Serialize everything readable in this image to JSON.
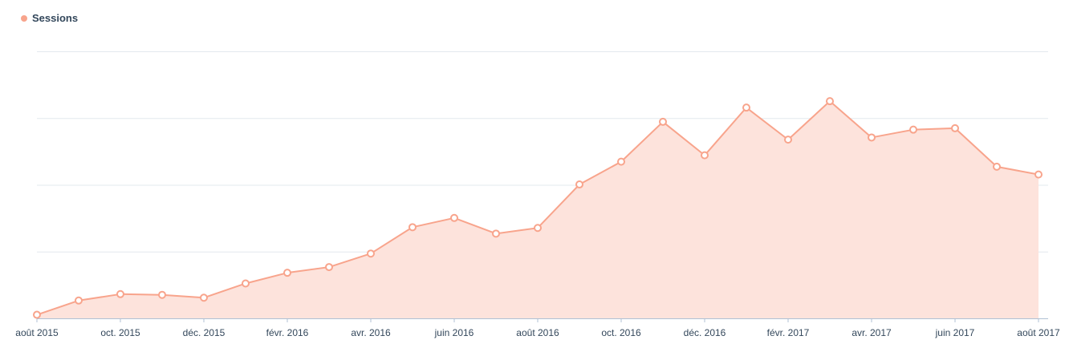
{
  "legend": {
    "label": "Sessions",
    "color": "#f8a48c"
  },
  "colors": {
    "line": "#f8a48c",
    "area": "#fde3dc",
    "point_fill": "#ffffff",
    "grid": "#e3e8ee",
    "axis": "#b0c1d4"
  },
  "chart_data": {
    "type": "area",
    "grid": true,
    "legend_position": "top-left",
    "ylim": [
      0,
      375
    ],
    "x": [
      "2015-08",
      "2015-09",
      "2015-10",
      "2015-11",
      "2015-12",
      "2016-01",
      "2016-02",
      "2016-03",
      "2016-04",
      "2016-05",
      "2016-06",
      "2016-07",
      "2016-08",
      "2016-09",
      "2016-10",
      "2016-11",
      "2016-12",
      "2017-01",
      "2017-02",
      "2017-03",
      "2017-04",
      "2017-05",
      "2017-06",
      "2017-07",
      "2017-08"
    ],
    "tick_labels": [
      "août 2015",
      "oct. 2015",
      "déc. 2015",
      "févr. 2016",
      "avr. 2016",
      "juin 2016",
      "août 2016",
      "oct. 2016",
      "déc. 2016",
      "févr. 2017",
      "avr. 2017",
      "juin 2017",
      "août 2017"
    ],
    "series": [
      {
        "name": "Sessions",
        "values": [
          5,
          25,
          34,
          33,
          29,
          49,
          64,
          72,
          91,
          128,
          141,
          119,
          127,
          188,
          220,
          276,
          229,
          296,
          251,
          305,
          254,
          265,
          267,
          213,
          202
        ]
      }
    ]
  }
}
